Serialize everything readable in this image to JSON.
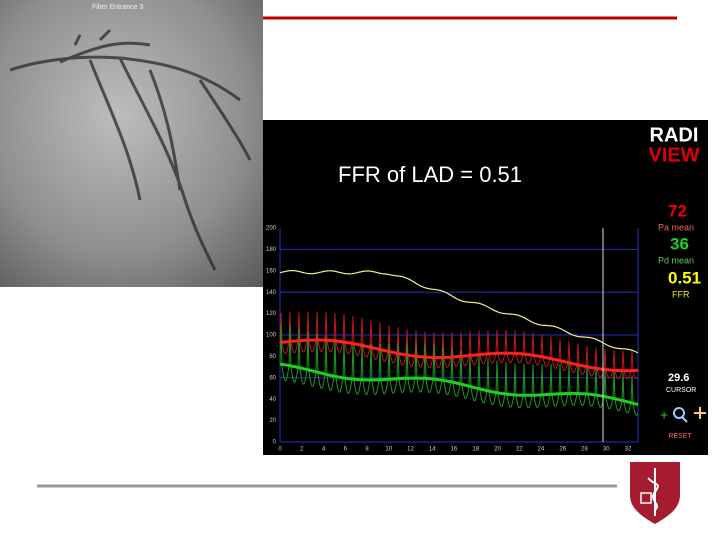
{
  "angiogram": {
    "caption": "Filter Entrance 3"
  },
  "slide": {
    "title": "FFR of LAD = 0.51"
  },
  "logo": {
    "line1": "RADI",
    "line2": "VIEW"
  },
  "readouts": [
    {
      "value": "72",
      "label": "Pa mean"
    },
    {
      "value": "36",
      "label": "Pd mean"
    },
    {
      "value": "0.51",
      "label": "FFR"
    },
    {
      "value": "29.6",
      "label": "CURSOR"
    }
  ],
  "controls": {
    "reset": "RESET"
  },
  "tracing": {
    "y_labels": [
      "0",
      "20",
      "40",
      "60",
      "80",
      "100",
      "120",
      "140",
      "160",
      "180",
      "200"
    ],
    "x_labels": [
      "0",
      "2",
      "4",
      "6",
      "8",
      "10",
      "12",
      "14",
      "16",
      "18",
      "20",
      "22",
      "24",
      "26",
      "28",
      "30",
      "32"
    ]
  }
}
